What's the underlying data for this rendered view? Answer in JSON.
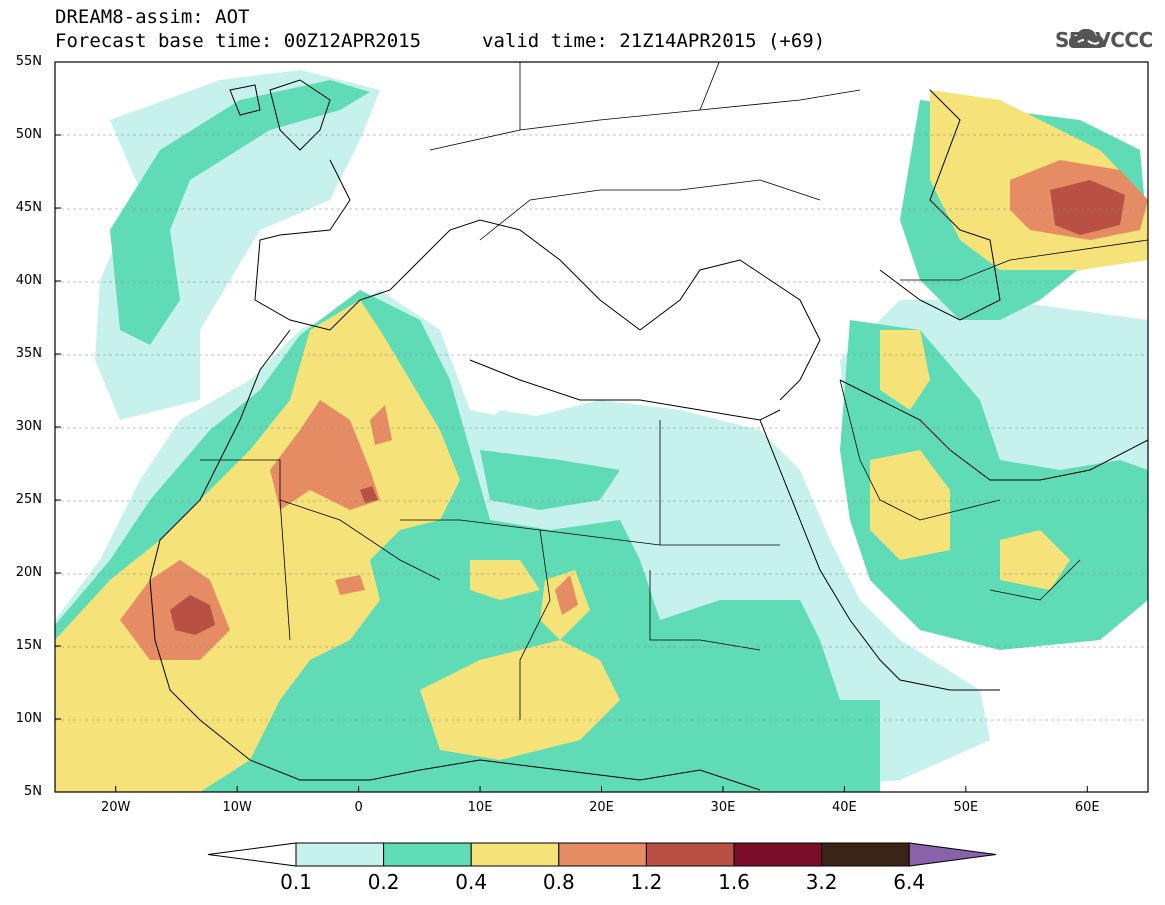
{
  "header": {
    "title_line1": "DREAM8-assim: AOT",
    "title_line2": "Forecast base time: 00Z12APR2015",
    "valid_time": "valid time: 21Z14APR2015 (+69)",
    "logo_text": "SEEVCCC",
    "logo_icon": "cloud-icon"
  },
  "map": {
    "lat_labels": [
      "55N",
      "50N",
      "45N",
      "40N",
      "35N",
      "30N",
      "25N",
      "20N",
      "15N",
      "10N",
      "5N"
    ],
    "lon_labels": [
      "20W",
      "10W",
      "0",
      "10E",
      "20E",
      "30E",
      "40E",
      "50E",
      "60E"
    ],
    "lat_range": [
      5,
      55
    ],
    "lon_range": [
      -25,
      65
    ],
    "gridlines": true,
    "gridline_style": "dashed"
  },
  "colorbar": {
    "labels": [
      "0.1",
      "0.2",
      "0.4",
      "0.8",
      "1.2",
      "1.6",
      "3.2",
      "6.4"
    ],
    "colors": [
      "#c6f1ec",
      "#5fdcb6",
      "#f5e37a",
      "#e58c65",
      "#b85144",
      "#7a0e2a",
      "#3a2418"
    ],
    "under_color": "#ffffff",
    "over_color": "#8a62a8"
  }
}
